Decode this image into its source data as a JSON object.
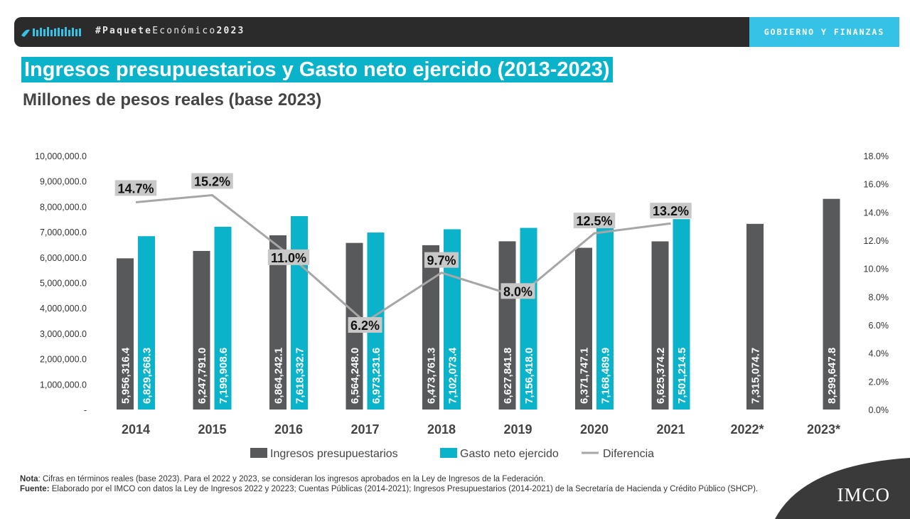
{
  "header": {
    "hashtag_prefix": "#Paquete",
    "hashtag_middle": "Económico",
    "hashtag_year": "2023",
    "section": "GOBIERNO Y FINANZAS"
  },
  "colors": {
    "ingresos": "#58595b",
    "gasto": "#0ab3c9",
    "diferencia": "#a6a6a6",
    "title_bg": "#0ab3c9",
    "tag_bg": "#35c2e6",
    "topbar": "#2b2b2b"
  },
  "chart_data": {
    "type": "bar",
    "title": "Ingresos presupuestarios y Gasto neto ejercido (2013-2023)",
    "subtitle": "Millones de pesos reales (base 2023)",
    "categories": [
      "2014",
      "2015",
      "2016",
      "2017",
      "2018",
      "2019",
      "2020",
      "2021",
      "2022*",
      "2023*"
    ],
    "series": [
      {
        "name": "Ingresos presupuestarios",
        "kind": "bar",
        "axis": "left",
        "values": [
          5956316.4,
          6247791.0,
          6864242.1,
          6564248.0,
          6473761.3,
          6627841.8,
          6371747.1,
          6625374.2,
          7315074.7,
          8299647.8
        ],
        "labels": [
          "5,956,316.4",
          "6,247,791.0",
          "6,864,242.1",
          "6,564,248.0",
          "6,473,761.3",
          "6,627,841.8",
          "6,371,747.1",
          "6,625,374.2",
          "7,315,074.7",
          "8,299,647.8"
        ]
      },
      {
        "name": "Gasto neto ejercido",
        "kind": "bar",
        "axis": "left",
        "values": [
          6829268.3,
          7199908.6,
          7618332.7,
          6973231.6,
          7102073.4,
          7156418.0,
          7168489.9,
          7501214.5,
          null,
          null
        ],
        "labels": [
          "6,829,268.3",
          "7,199,908.6",
          "7,618,332.7",
          "6,973,231.6",
          "7,102,073.4",
          "7,156,418.0",
          "7,168,489.9",
          "7,501,214.5",
          "",
          ""
        ]
      },
      {
        "name": "Diferencia",
        "kind": "line",
        "axis": "right",
        "values": [
          14.7,
          15.2,
          11.0,
          6.2,
          9.7,
          8.0,
          12.5,
          13.2,
          null,
          null
        ],
        "labels": [
          "14.7%",
          "15.2%",
          "11.0%",
          "6.2%",
          "9.7%",
          "8.0%",
          "12.5%",
          "13.2%",
          "",
          ""
        ]
      }
    ],
    "ylim_left": [
      0,
      10000000
    ],
    "yticks_left": [
      "-",
      "1,000,000.0",
      "2,000,000.0",
      "3,000,000.0",
      "4,000,000.0",
      "5,000,000.0",
      "6,000,000.0",
      "7,000,000.0",
      "8,000,000.0",
      "9,000,000.0",
      "10,000,000.0"
    ],
    "ylim_right": [
      0,
      18
    ],
    "yticks_right": [
      "0.0%",
      "2.0%",
      "4.0%",
      "6.0%",
      "8.0%",
      "10.0%",
      "12.0%",
      "14.0%",
      "16.0%",
      "18.0%"
    ],
    "legend_position": "bottom",
    "grid": false
  },
  "notes": {
    "nota_label": "Nota",
    "nota_text": ": Cifras en términos reales (base 2023). Para el 2022 y 2023, se consideran los ingresos aprobados en la Ley de Ingresos de la Federación.",
    "fuente_label": "Fuente:",
    "fuente_text": " Elaborado por el IMCO con datos la Ley de Ingresos 2022 y 20223;  Cuentas Públicas (2014-2021); Ingresos Presupuestarios (2014-2021) de la Secretaría de Hacienda y Crédito Público (SHCP)."
  },
  "brand": {
    "logo_text": "IMCO"
  }
}
